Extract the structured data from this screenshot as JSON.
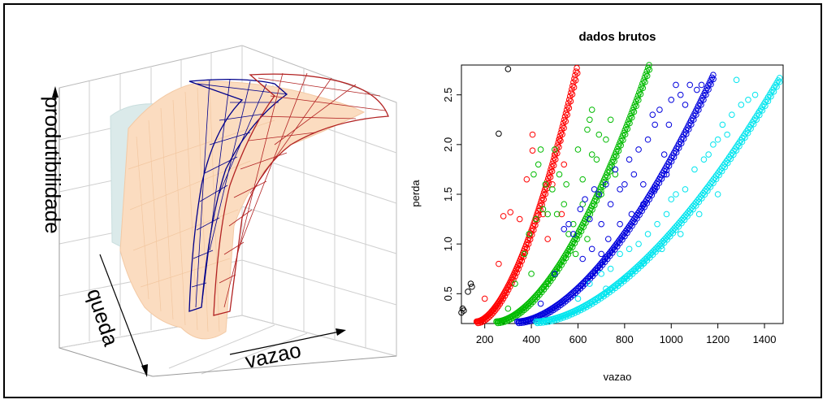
{
  "chart_data": [
    {
      "type": "surface3d",
      "title": "",
      "axes": {
        "z": "produtibilidade",
        "y": "queda",
        "x": "vazao"
      },
      "surfaces": [
        {
          "color": "#dbeaea",
          "style": "solid"
        },
        {
          "color": "#fbdcc0",
          "style": "wireframe-dense"
        },
        {
          "color": "#00008b",
          "style": "wireframe"
        },
        {
          "color": "#b22222",
          "style": "wireframe"
        }
      ]
    },
    {
      "type": "scatter",
      "title": "dados brutos",
      "xlabel": "vazao",
      "ylabel": "perda",
      "xlim": [
        100,
        1480
      ],
      "ylim": [
        0.2,
        2.8
      ],
      "xticks": [
        200,
        400,
        600,
        800,
        1000,
        1200,
        1400
      ],
      "yticks": [
        0.5,
        1.0,
        1.5,
        2.0,
        2.5
      ],
      "ytick_labels": [
        "0.5",
        "1.0",
        "1.5",
        "2.0",
        "2.5"
      ],
      "marker": "open-circle",
      "series": [
        {
          "color": "#000000",
          "points": [
            [
              100,
              0.31
            ],
            [
              105,
              0.35
            ],
            [
              110,
              0.33
            ],
            [
              128,
              0.52
            ],
            [
              140,
              0.6
            ],
            [
              145,
              0.57
            ],
            [
              260,
              2.11
            ],
            [
              300,
              2.76
            ]
          ]
        },
        {
          "color": "#ff0000",
          "curve": {
            "x0": 165,
            "x1": 595,
            "y0": 0.22,
            "y1": 2.77,
            "n": 120
          },
          "scatter": [
            [
              200,
              0.45
            ],
            [
              260,
              0.8
            ],
            [
              280,
              1.28
            ],
            [
              310,
              1.32
            ],
            [
              350,
              1.25
            ],
            [
              380,
              1.65
            ],
            [
              405,
              1.94
            ],
            [
              405,
              2.1
            ],
            [
              450,
              1.3
            ],
            [
              470,
              1.05
            ],
            [
              490,
              1.6
            ],
            [
              500,
              1.9
            ],
            [
              520,
              2.05
            ],
            [
              530,
              1.3
            ],
            [
              540,
              1.8
            ]
          ]
        },
        {
          "color": "#00bb00",
          "curve": {
            "x0": 250,
            "x1": 905,
            "y0": 0.22,
            "y1": 2.8,
            "n": 140
          },
          "scatter": [
            [
              300,
              0.35
            ],
            [
              330,
              0.6
            ],
            [
              370,
              0.9
            ],
            [
              390,
              1.1
            ],
            [
              400,
              0.7
            ],
            [
              410,
              1.7
            ],
            [
              420,
              1.25
            ],
            [
              430,
              1.8
            ],
            [
              440,
              1.95
            ],
            [
              450,
              1.35
            ],
            [
              460,
              1.6
            ],
            [
              470,
              1.3
            ],
            [
              490,
              1.55
            ],
            [
              500,
              1.95
            ],
            [
              510,
              1.3
            ],
            [
              520,
              1.7
            ],
            [
              540,
              1.4
            ],
            [
              550,
              1.6
            ],
            [
              560,
              1.1
            ],
            [
              580,
              1.2
            ],
            [
              600,
              1.95
            ],
            [
              620,
              1.65
            ],
            [
              640,
              2.15
            ],
            [
              650,
              2.25
            ],
            [
              660,
              2.35
            ],
            [
              680,
              1.85
            ],
            [
              700,
              1.5
            ],
            [
              720,
              2.05
            ],
            [
              740,
              2.25
            ],
            [
              760,
              1.7
            ],
            [
              620,
              1.4
            ],
            [
              590,
              0.9
            ],
            [
              640,
              1.05
            ],
            [
              660,
              1.9
            ],
            [
              690,
              2.1
            ]
          ]
        },
        {
          "color": "#0000dd",
          "curve": {
            "x0": 340,
            "x1": 1180,
            "y0": 0.22,
            "y1": 2.7,
            "n": 160
          },
          "scatter": [
            [
              440,
              0.4
            ],
            [
              500,
              0.7
            ],
            [
              540,
              1.15
            ],
            [
              560,
              1.2
            ],
            [
              580,
              1.1
            ],
            [
              610,
              1.35
            ],
            [
              630,
              1.45
            ],
            [
              650,
              1.25
            ],
            [
              670,
              1.55
            ],
            [
              690,
              1.5
            ],
            [
              700,
              1.2
            ],
            [
              720,
              1.6
            ],
            [
              740,
              1.4
            ],
            [
              760,
              1.75
            ],
            [
              780,
              1.55
            ],
            [
              800,
              1.6
            ],
            [
              820,
              1.85
            ],
            [
              840,
              1.7
            ],
            [
              860,
              1.95
            ],
            [
              880,
              1.6
            ],
            [
              900,
              2.05
            ],
            [
              920,
              2.3
            ],
            [
              930,
              2.2
            ],
            [
              950,
              2.35
            ],
            [
              970,
              1.9
            ],
            [
              990,
              2.2
            ],
            [
              1000,
              2.45
            ],
            [
              1020,
              2.6
            ],
            [
              1040,
              2.5
            ],
            [
              1060,
              2.4
            ],
            [
              1080,
              2.6
            ],
            [
              1110,
              2.55
            ],
            [
              1130,
              2.6
            ],
            [
              620,
              0.85
            ],
            [
              660,
              0.95
            ],
            [
              700,
              0.9
            ],
            [
              730,
              1.05
            ],
            [
              780,
              1.2
            ],
            [
              830,
              1.3
            ],
            [
              880,
              1.4
            ],
            [
              930,
              1.55
            ],
            [
              980,
              1.7
            ]
          ]
        },
        {
          "color": "#00e5ee",
          "curve": {
            "x0": 420,
            "x1": 1465,
            "y0": 0.22,
            "y1": 2.67,
            "n": 170
          },
          "scatter": [
            [
              600,
              0.45
            ],
            [
              650,
              0.6
            ],
            [
              700,
              0.7
            ],
            [
              740,
              0.75
            ],
            [
              780,
              0.9
            ],
            [
              820,
              0.95
            ],
            [
              860,
              1.0
            ],
            [
              900,
              1.1
            ],
            [
              940,
              1.2
            ],
            [
              980,
              1.3
            ],
            [
              1000,
              1.45
            ],
            [
              1020,
              1.5
            ],
            [
              1060,
              1.55
            ],
            [
              1100,
              1.75
            ],
            [
              1140,
              1.85
            ],
            [
              1160,
              1.9
            ],
            [
              1180,
              2.0
            ],
            [
              1200,
              2.05
            ],
            [
              1220,
              2.2
            ],
            [
              1240,
              2.1
            ],
            [
              1260,
              2.3
            ],
            [
              1280,
              2.65
            ],
            [
              1300,
              2.4
            ],
            [
              1330,
              2.45
            ],
            [
              1360,
              2.5
            ],
            [
              720,
              0.55
            ],
            [
              800,
              0.65
            ],
            [
              880,
              0.8
            ],
            [
              960,
              0.95
            ],
            [
              1040,
              1.1
            ],
            [
              1120,
              1.3
            ],
            [
              1200,
              1.5
            ]
          ]
        }
      ]
    }
  ]
}
